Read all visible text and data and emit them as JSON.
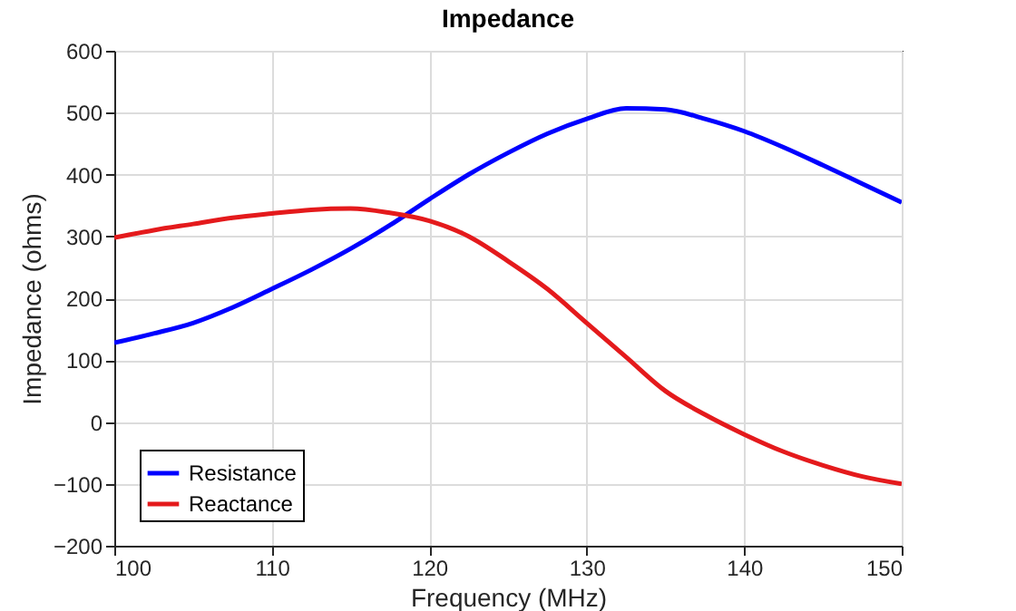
{
  "chart_data": {
    "type": "line",
    "title": "Impedance",
    "xlabel": "Frequency (MHz)",
    "ylabel": "Impedance (ohms)",
    "x": [
      100,
      102.5,
      105,
      107.5,
      110,
      112.5,
      115,
      117.5,
      120,
      122.5,
      125,
      127.5,
      130,
      132.5,
      135,
      137.5,
      140,
      142.5,
      145,
      147.5,
      150
    ],
    "series": [
      {
        "name": "Resistance",
        "color": "#0000ff",
        "values": [
          128,
          143,
          160,
          185,
          215,
          246,
          280,
          318,
          360,
          400,
          435,
          466,
          490,
          507,
          505,
          490,
          470,
          444,
          415,
          385,
          355
        ]
      },
      {
        "name": "Reactance",
        "color": "#e41a1c",
        "values": [
          298,
          310,
          320,
          330,
          337,
          343,
          345,
          338,
          325,
          300,
          260,
          215,
          160,
          105,
          50,
          12,
          -20,
          -48,
          -70,
          -88,
          -100
        ]
      }
    ],
    "xlim": [
      100,
      150
    ],
    "xticks": [
      100,
      110,
      120,
      130,
      140,
      150
    ],
    "ylim": [
      -200,
      600
    ],
    "yticks": [
      -200,
      -100,
      0,
      100,
      200,
      300,
      400,
      500,
      600
    ],
    "grid": true,
    "legend": "bottom left"
  }
}
